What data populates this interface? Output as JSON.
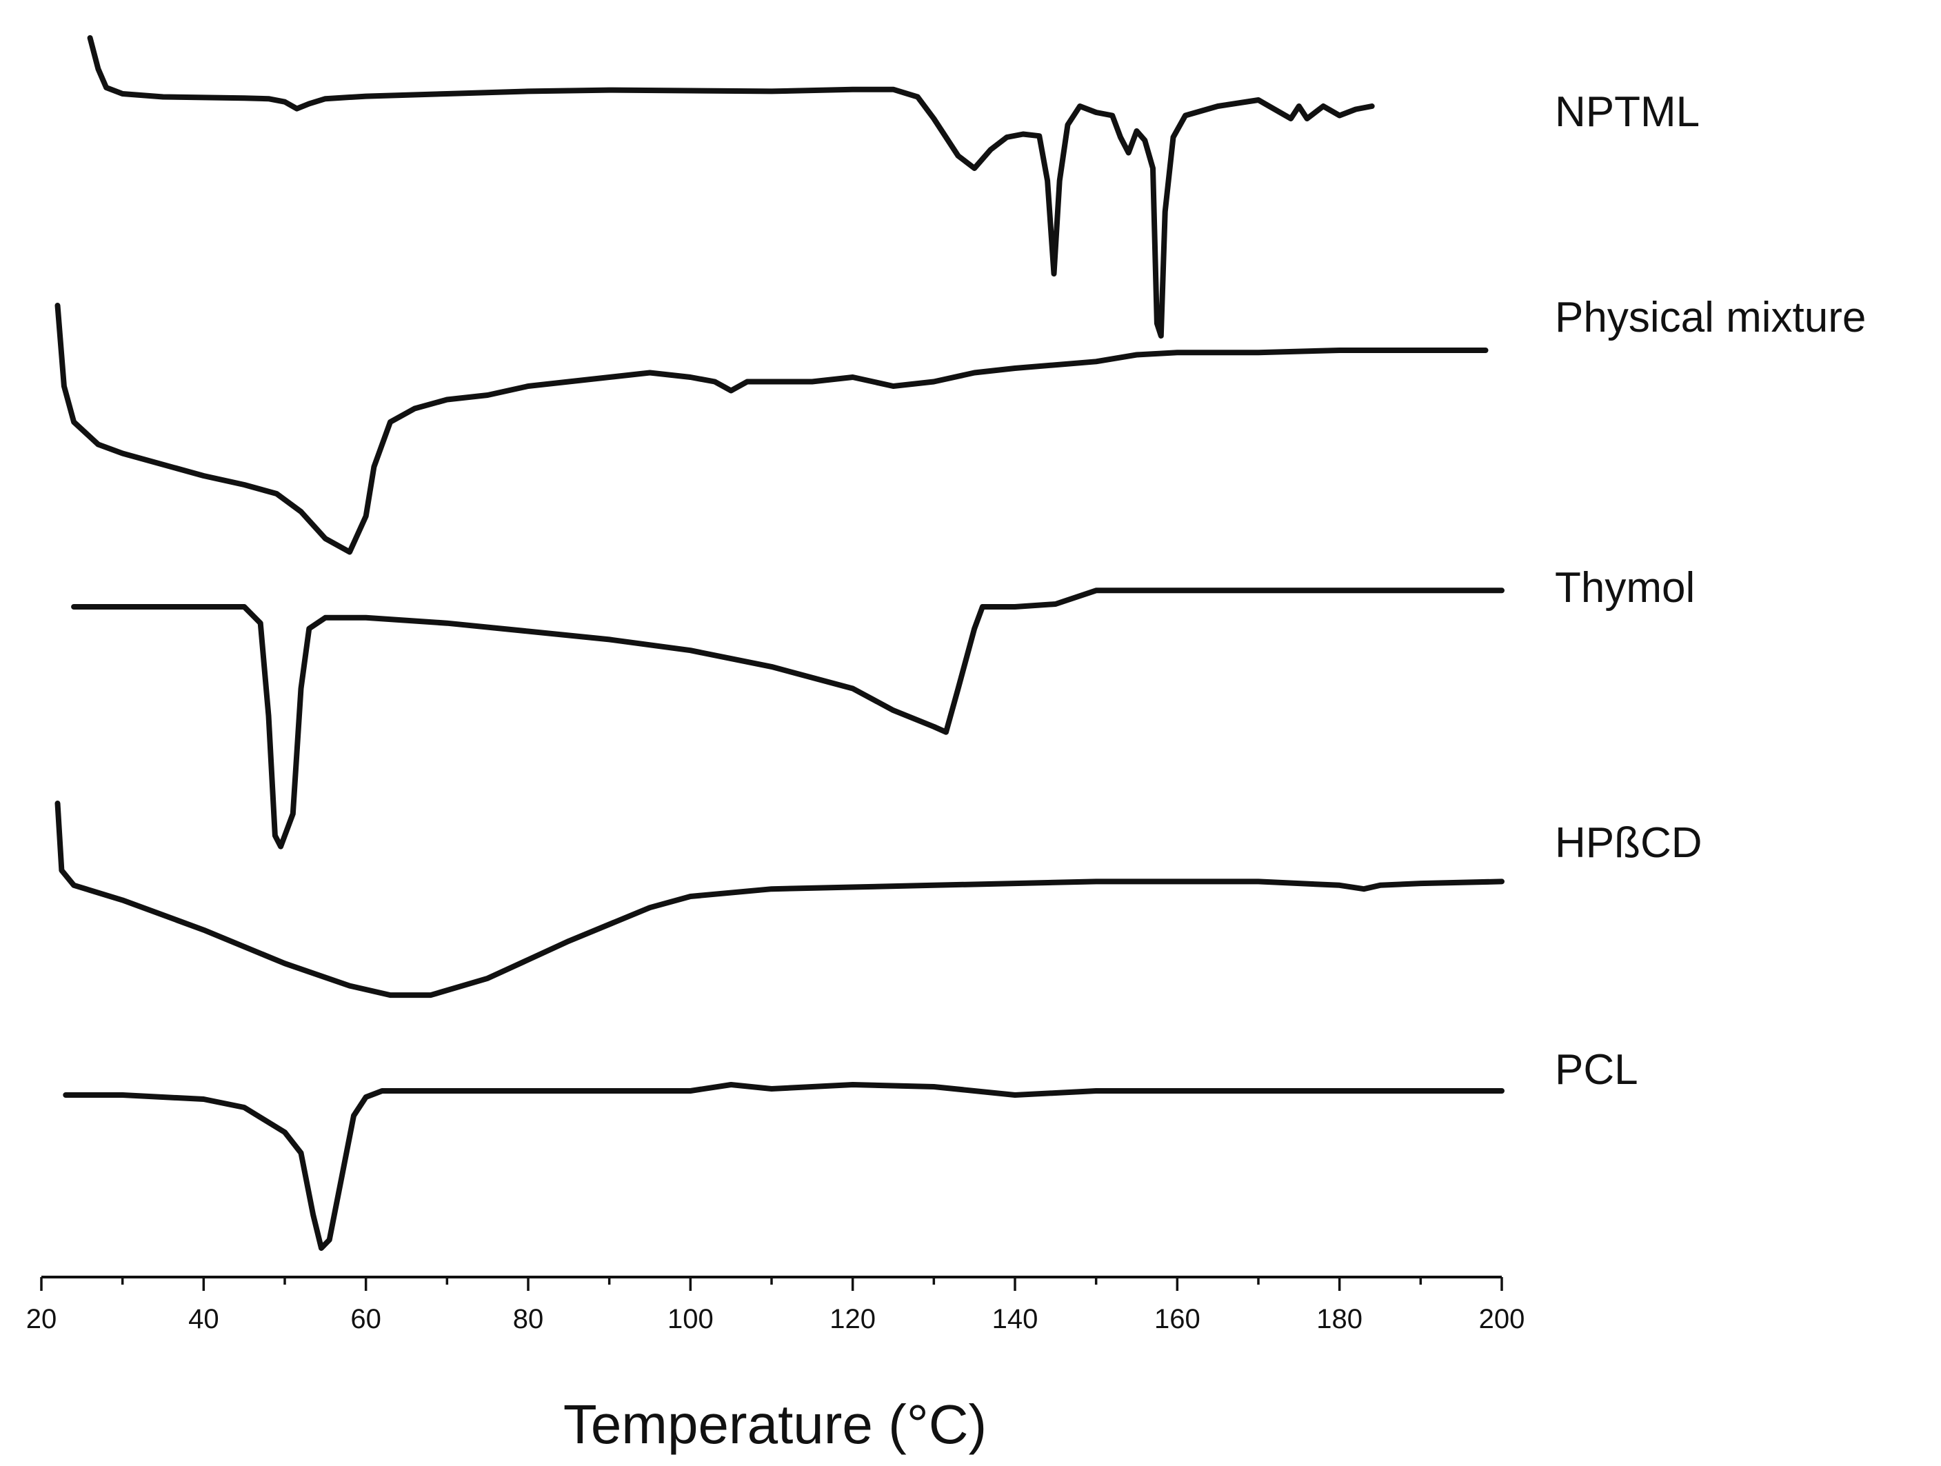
{
  "chart_data": {
    "type": "line",
    "title": "",
    "xlabel": "Temperature (°C)",
    "ylabel": "",
    "xlim": [
      20,
      200
    ],
    "x_major_ticks": [
      20,
      40,
      60,
      80,
      100,
      120,
      140,
      160,
      180,
      200
    ],
    "x_minor_step": 10,
    "tick_labels": [
      "20",
      "40",
      "60",
      "80",
      "100",
      "120",
      "140",
      "160",
      "180",
      "200"
    ],
    "y_units": "arbitrary heat flow (stacked, offset curves; downward = endotherm)",
    "series": [
      {
        "name": "NPTML",
        "points": [
          [
            26,
            8
          ],
          [
            27,
            3
          ],
          [
            28,
            0
          ],
          [
            30,
            -1
          ],
          [
            35,
            -1.5
          ],
          [
            40,
            -1.6
          ],
          [
            45,
            -1.7
          ],
          [
            48,
            -1.8
          ],
          [
            50,
            -2.3
          ],
          [
            51.5,
            -3.4
          ],
          [
            53,
            -2.6
          ],
          [
            55,
            -1.8
          ],
          [
            60,
            -1.4
          ],
          [
            70,
            -1
          ],
          [
            80,
            -0.6
          ],
          [
            90,
            -0.4
          ],
          [
            100,
            -0.5
          ],
          [
            110,
            -0.6
          ],
          [
            120,
            -0.3
          ],
          [
            125,
            -0.3
          ],
          [
            128,
            -1.5
          ],
          [
            130,
            -5
          ],
          [
            133,
            -11
          ],
          [
            135,
            -13
          ],
          [
            137,
            -10
          ],
          [
            139,
            -8
          ],
          [
            141,
            -7.5
          ],
          [
            143,
            -7.8
          ],
          [
            144,
            -15
          ],
          [
            144.8,
            -30
          ],
          [
            145.5,
            -15
          ],
          [
            146.5,
            -6
          ],
          [
            148,
            -3
          ],
          [
            150,
            -4
          ],
          [
            152,
            -4.5
          ],
          [
            153,
            -8
          ],
          [
            154,
            -10.5
          ],
          [
            155,
            -7
          ],
          [
            156,
            -8.5
          ],
          [
            157,
            -13
          ],
          [
            157.5,
            -38
          ],
          [
            158,
            -40
          ],
          [
            158.5,
            -20
          ],
          [
            159.5,
            -8
          ],
          [
            161,
            -4.5
          ],
          [
            165,
            -3
          ],
          [
            170,
            -2
          ],
          [
            172,
            -3.5
          ],
          [
            174,
            -5
          ],
          [
            175,
            -3
          ],
          [
            176,
            -5
          ],
          [
            178,
            -3
          ],
          [
            180,
            -4.5
          ],
          [
            182,
            -3.5
          ],
          [
            184,
            -3
          ]
        ]
      },
      {
        "name": "Physical mixture",
        "points": [
          [
            22,
            0
          ],
          [
            22.8,
            -18
          ],
          [
            24,
            -26
          ],
          [
            27,
            -31
          ],
          [
            30,
            -33
          ],
          [
            40,
            -38
          ],
          [
            45,
            -40
          ],
          [
            49,
            -42
          ],
          [
            52,
            -46
          ],
          [
            55,
            -52
          ],
          [
            58,
            -55
          ],
          [
            60,
            -47
          ],
          [
            61,
            -36
          ],
          [
            63,
            -26
          ],
          [
            66,
            -23
          ],
          [
            70,
            -21
          ],
          [
            75,
            -20
          ],
          [
            80,
            -18
          ],
          [
            90,
            -16
          ],
          [
            95,
            -15
          ],
          [
            100,
            -16
          ],
          [
            103,
            -17
          ],
          [
            105,
            -19
          ],
          [
            107,
            -17
          ],
          [
            110,
            -17
          ],
          [
            115,
            -17
          ],
          [
            120,
            -16
          ],
          [
            125,
            -18
          ],
          [
            130,
            -17
          ],
          [
            135,
            -15
          ],
          [
            140,
            -14
          ],
          [
            150,
            -12.5
          ],
          [
            155,
            -11
          ],
          [
            160,
            -10.5
          ],
          [
            170,
            -10.5
          ],
          [
            180,
            -10
          ],
          [
            190,
            -10
          ],
          [
            198,
            -10
          ]
        ]
      },
      {
        "name": "Thymol",
        "points": [
          [
            24,
            0
          ],
          [
            30,
            0
          ],
          [
            40,
            0
          ],
          [
            45,
            0
          ],
          [
            47,
            -3
          ],
          [
            48,
            -20
          ],
          [
            48.8,
            -42
          ],
          [
            49.5,
            -44
          ],
          [
            51,
            -38
          ],
          [
            52,
            -15
          ],
          [
            53,
            -4
          ],
          [
            55,
            -2
          ],
          [
            60,
            -2
          ],
          [
            70,
            -3
          ],
          [
            80,
            -4.5
          ],
          [
            90,
            -6
          ],
          [
            100,
            -8
          ],
          [
            110,
            -11
          ],
          [
            120,
            -15
          ],
          [
            125,
            -19
          ],
          [
            130,
            -22
          ],
          [
            131.5,
            -23
          ],
          [
            133,
            -15
          ],
          [
            135,
            -4
          ],
          [
            136,
            0
          ],
          [
            140,
            0
          ],
          [
            145,
            0.5
          ],
          [
            150,
            3
          ],
          [
            160,
            3
          ],
          [
            170,
            3
          ],
          [
            190,
            3
          ],
          [
            200,
            3
          ]
        ]
      },
      {
        "name": "HPßCD",
        "points": [
          [
            22,
            0
          ],
          [
            22.5,
            -18
          ],
          [
            24,
            -22
          ],
          [
            30,
            -26
          ],
          [
            40,
            -34
          ],
          [
            50,
            -43
          ],
          [
            58,
            -49
          ],
          [
            63,
            -51.5
          ],
          [
            68,
            -51.5
          ],
          [
            75,
            -47
          ],
          [
            85,
            -37
          ],
          [
            95,
            -28
          ],
          [
            100,
            -25
          ],
          [
            110,
            -23
          ],
          [
            120,
            -22.5
          ],
          [
            130,
            -22
          ],
          [
            150,
            -21
          ],
          [
            170,
            -21
          ],
          [
            180,
            -22
          ],
          [
            183,
            -23
          ],
          [
            185,
            -22
          ],
          [
            190,
            -21.5
          ],
          [
            200,
            -21
          ]
        ]
      },
      {
        "name": "PCL",
        "points": [
          [
            23,
            0
          ],
          [
            30,
            0
          ],
          [
            40,
            -1
          ],
          [
            45,
            -3
          ],
          [
            50,
            -9
          ],
          [
            52,
            -14
          ],
          [
            53.5,
            -29
          ],
          [
            54.5,
            -37
          ],
          [
            55.5,
            -35
          ],
          [
            57,
            -20
          ],
          [
            58.5,
            -5
          ],
          [
            60,
            -0.5
          ],
          [
            62,
            1
          ],
          [
            70,
            1
          ],
          [
            80,
            1
          ],
          [
            90,
            1
          ],
          [
            100,
            1
          ],
          [
            105,
            2.5
          ],
          [
            110,
            1.5
          ],
          [
            120,
            2.5
          ],
          [
            130,
            2
          ],
          [
            140,
            0
          ],
          [
            145,
            0.5
          ],
          [
            150,
            1
          ],
          [
            160,
            1
          ],
          [
            180,
            1
          ],
          [
            200,
            1
          ]
        ]
      }
    ]
  }
}
